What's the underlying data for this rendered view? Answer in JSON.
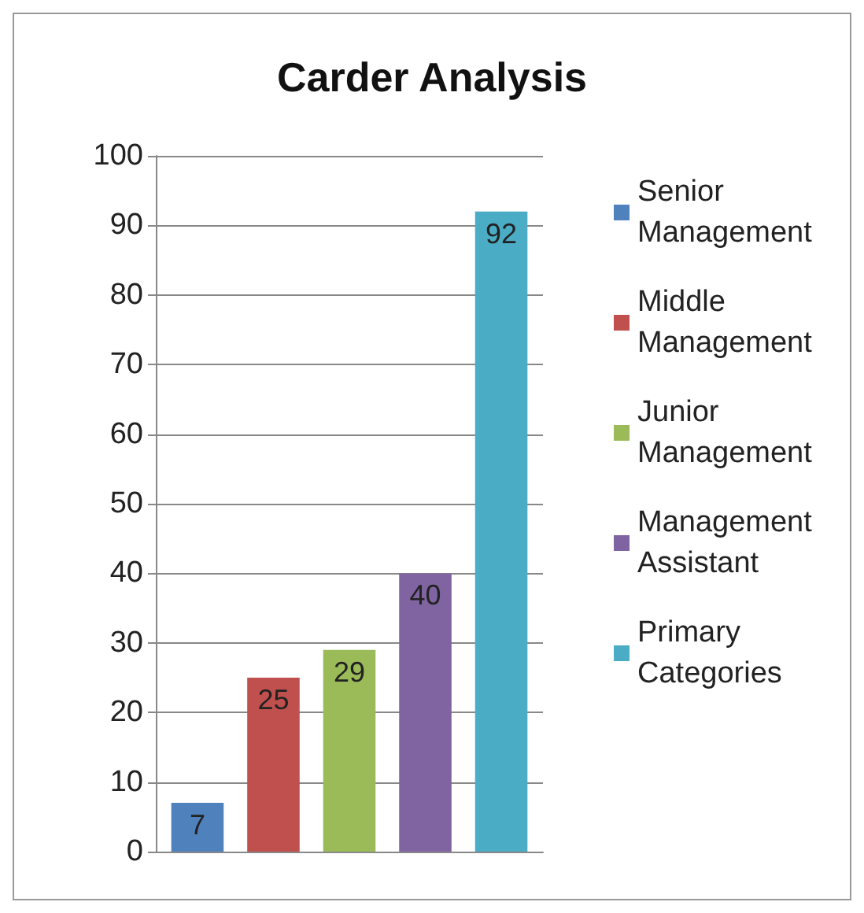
{
  "chart_data": {
    "type": "bar",
    "title": "Carder Analysis",
    "categories": [
      null
    ],
    "series": [
      {
        "name": "Senior Management",
        "color": "#4f81bd",
        "values": [
          7
        ]
      },
      {
        "name": "Middle Management",
        "color": "#c0504d",
        "values": [
          25
        ]
      },
      {
        "name": "Junior Management",
        "color": "#9bbb59",
        "values": [
          29
        ]
      },
      {
        "name": "Management Assistant",
        "color": "#8064a2",
        "values": [
          40
        ]
      },
      {
        "name": "Primary Categories",
        "color": "#4bacc6",
        "values": [
          92
        ]
      }
    ],
    "ylim": [
      0,
      100
    ],
    "yticks": [
      0,
      10,
      20,
      30,
      40,
      50,
      60,
      70,
      80,
      90,
      100
    ],
    "grid": "y",
    "legend": "right",
    "data_labels": true
  }
}
